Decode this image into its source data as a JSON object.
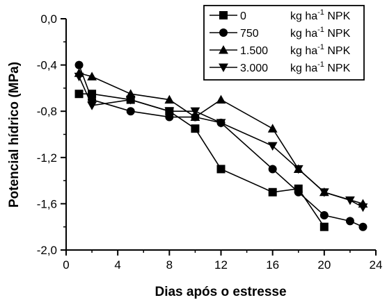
{
  "chart_data": {
    "type": "line",
    "xlabel": "Dias após o estresse",
    "ylabel": "Potencial hídrico  (MPa)",
    "xlim": [
      0,
      24
    ],
    "ylim": [
      -2.0,
      0.0
    ],
    "x_ticks": [
      "0",
      "4",
      "8",
      "12",
      "16",
      "20",
      "24"
    ],
    "y_ticks": [
      "0,0",
      "-0,4",
      "-0,8",
      "-1,2",
      "-1,6",
      "-2,0"
    ],
    "grid": false,
    "legend_position": "top-right",
    "legend_unit": {
      "base": "kg ha",
      "sup": "-1",
      "suffix": " NPK"
    },
    "series": [
      {
        "name": "0",
        "marker": "square",
        "points": [
          [
            1,
            -0.65
          ],
          [
            2,
            -0.65
          ],
          [
            5,
            -0.7
          ],
          [
            8,
            -0.8
          ],
          [
            10,
            -0.95
          ],
          [
            12,
            -1.3
          ],
          [
            16,
            -1.5
          ],
          [
            18,
            -1.47
          ],
          [
            20,
            -1.8
          ]
        ]
      },
      {
        "name": "750",
        "marker": "circle",
        "points": [
          [
            1,
            -0.4
          ],
          [
            2,
            -0.7
          ],
          [
            5,
            -0.8
          ],
          [
            8,
            -0.85
          ],
          [
            10,
            -0.85
          ],
          [
            12,
            -0.9
          ],
          [
            16,
            -1.3
          ],
          [
            18,
            -1.5
          ],
          [
            20,
            -1.7
          ],
          [
            22,
            -1.75
          ],
          [
            23,
            -1.8
          ]
        ]
      },
      {
        "name": "1.500",
        "marker": "triangle-up",
        "points": [
          [
            1,
            -0.47
          ],
          [
            2,
            -0.5
          ],
          [
            5,
            -0.65
          ],
          [
            8,
            -0.7
          ],
          [
            10,
            -0.85
          ],
          [
            12,
            -0.7
          ],
          [
            16,
            -0.95
          ],
          [
            18,
            -1.3
          ],
          [
            20,
            -1.5
          ],
          [
            23,
            -1.6
          ]
        ]
      },
      {
        "name": "3.000",
        "marker": "triangle-down",
        "points": [
          [
            1,
            -0.5
          ],
          [
            2,
            -0.75
          ],
          [
            5,
            -0.7
          ],
          [
            8,
            -0.8
          ],
          [
            10,
            -0.8
          ],
          [
            12,
            -0.9
          ],
          [
            16,
            -1.1
          ],
          [
            18,
            -1.3
          ],
          [
            20,
            -1.5
          ],
          [
            22,
            -1.57
          ],
          [
            23,
            -1.63
          ]
        ]
      }
    ]
  }
}
